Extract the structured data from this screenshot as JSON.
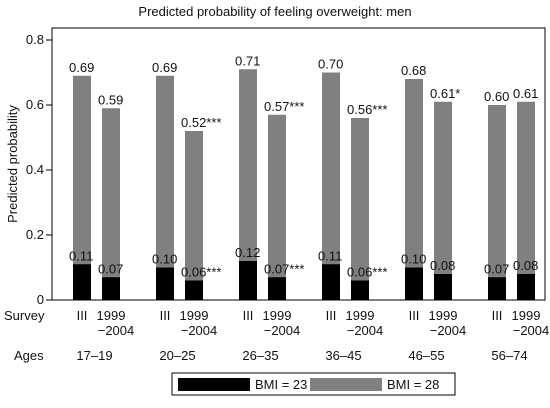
{
  "chart_data": {
    "type": "bar",
    "title": "Predicted probability of feeling overweight: men",
    "ylabel": "Predicted probability",
    "ylim": [
      0,
      0.8
    ],
    "yticks": [
      "0",
      "0.2",
      "0.4",
      "0.6",
      "0.8"
    ],
    "ytick_values": [
      0,
      0.2,
      0.4,
      0.6,
      0.8
    ],
    "grid": false,
    "row_labels": {
      "survey": "Survey",
      "ages": "Ages"
    },
    "series": [
      {
        "name": "BMI = 23",
        "color": "#000000"
      },
      {
        "name": "BMI = 28",
        "color": "#808080"
      }
    ],
    "groups": [
      {
        "ages": "17–19",
        "bars": [
          {
            "survey": "III",
            "survey2": "",
            "bmi23": 0.11,
            "bmi23_label": "0.11",
            "bmi28": 0.69,
            "bmi28_label": "0.69"
          },
          {
            "survey": "1999",
            "survey2": "−2004",
            "bmi23": 0.07,
            "bmi23_label": "0.07",
            "bmi28": 0.59,
            "bmi28_label": "0.59"
          }
        ]
      },
      {
        "ages": "20–25",
        "bars": [
          {
            "survey": "III",
            "survey2": "",
            "bmi23": 0.1,
            "bmi23_label": "0.10",
            "bmi28": 0.69,
            "bmi28_label": "0.69"
          },
          {
            "survey": "1999",
            "survey2": "−2004",
            "bmi23": 0.06,
            "bmi23_label": "0.06***",
            "bmi28": 0.52,
            "bmi28_label": "0.52***"
          }
        ]
      },
      {
        "ages": "26–35",
        "bars": [
          {
            "survey": "III",
            "survey2": "",
            "bmi23": 0.12,
            "bmi23_label": "0.12",
            "bmi28": 0.71,
            "bmi28_label": "0.71"
          },
          {
            "survey": "1999",
            "survey2": "−2004",
            "bmi23": 0.07,
            "bmi23_label": "0.07***",
            "bmi28": 0.57,
            "bmi28_label": "0.57***"
          }
        ]
      },
      {
        "ages": "36–45",
        "bars": [
          {
            "survey": "III",
            "survey2": "",
            "bmi23": 0.11,
            "bmi23_label": "0.11",
            "bmi28": 0.7,
            "bmi28_label": "0.70"
          },
          {
            "survey": "1999",
            "survey2": "−2004",
            "bmi23": 0.06,
            "bmi23_label": "0.06***",
            "bmi28": 0.56,
            "bmi28_label": "0.56***"
          }
        ]
      },
      {
        "ages": "46–55",
        "bars": [
          {
            "survey": "III",
            "survey2": "",
            "bmi23": 0.1,
            "bmi23_label": "0.10",
            "bmi28": 0.68,
            "bmi28_label": "0.68"
          },
          {
            "survey": "1999",
            "survey2": "−2004",
            "bmi23": 0.08,
            "bmi23_label": "0.08",
            "bmi28": 0.61,
            "bmi28_label": "0.61*"
          }
        ]
      },
      {
        "ages": "56–74",
        "bars": [
          {
            "survey": "III",
            "survey2": "",
            "bmi23": 0.07,
            "bmi23_label": "0.07",
            "bmi28": 0.6,
            "bmi28_label": "0.60"
          },
          {
            "survey": "1999",
            "survey2": "−2004",
            "bmi23": 0.08,
            "bmi23_label": "0.08",
            "bmi28": 0.61,
            "bmi28_label": "0.61"
          }
        ]
      }
    ]
  }
}
